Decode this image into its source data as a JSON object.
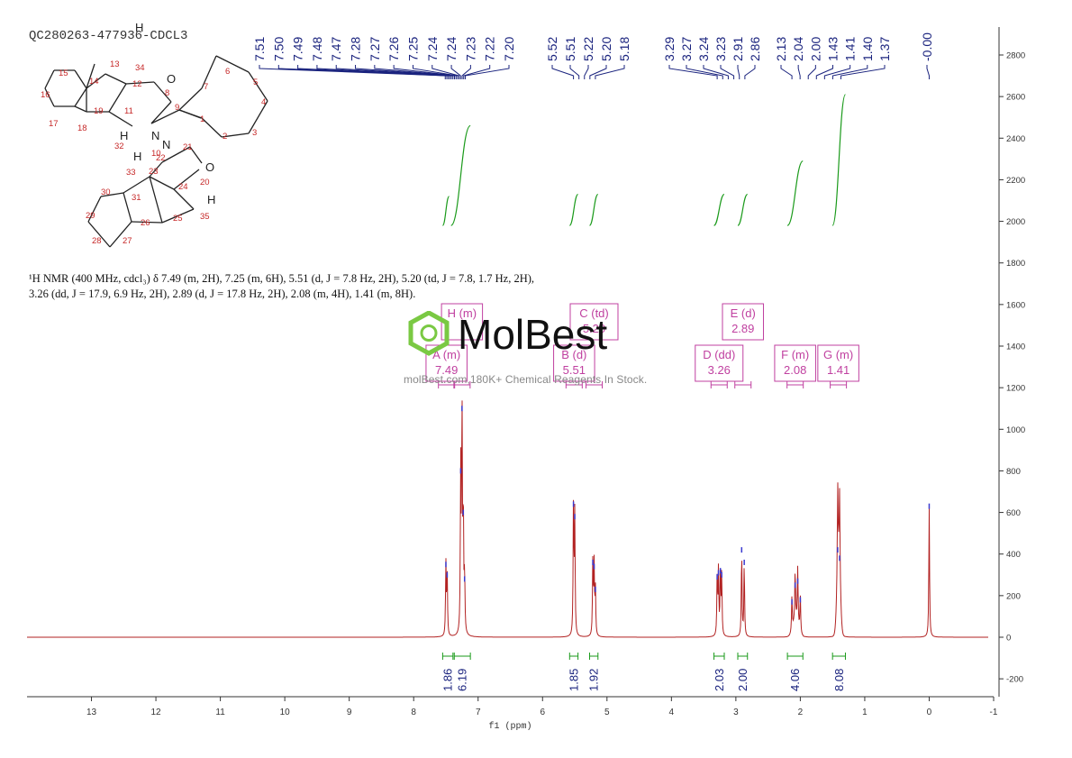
{
  "sample_id": "QC280263-477936-CDCL3",
  "nmr_summary": "¹H NMR (400 MHz, cdcl₃) δ 7.49 (m, 2H), 7.25 (m, 6H), 5.51 (d, J = 7.8 Hz, 2H), 5.20 (td, J = 7.8, 1.7 Hz, 2H), 3.26 (dd, J = 17.9, 6.9 Hz, 2H), 2.89 (d, J = 17.8 Hz, 2H), 2.08 (m, 4H), 1.41 (m, 8H).",
  "watermark": {
    "brand": "MolBest",
    "tagline": "molBest.com,180K+ Chemical Reagents In Stock."
  },
  "molecule_atoms": {
    "numbers": [
      "1",
      "2",
      "3",
      "4",
      "5",
      "6",
      "7",
      "8",
      "9",
      "10",
      "11",
      "12",
      "13",
      "14",
      "15",
      "16",
      "17",
      "18",
      "19",
      "20",
      "21",
      "22",
      "23",
      "24",
      "25",
      "26",
      "27",
      "28",
      "29",
      "30",
      "31",
      "32",
      "33",
      "34",
      "35"
    ],
    "elements": [
      "O",
      "N",
      "N",
      "O",
      "H",
      "H",
      "H",
      "H"
    ]
  },
  "chart_data": {
    "type": "line",
    "title": "",
    "xlabel": "f1 (ppm)",
    "ylabel": "",
    "xlim": [
      14,
      -1
    ],
    "ylim": [
      -300,
      2900
    ],
    "x_ticks": [
      "13",
      "12",
      "11",
      "10",
      "9",
      "8",
      "7",
      "6",
      "5",
      "4",
      "3",
      "2",
      "1",
      "0",
      "-1"
    ],
    "y_ticks": [
      "-200",
      "0",
      "200",
      "400",
      "600",
      "800",
      "1000",
      "1200",
      "1400",
      "1600",
      "1800",
      "2000",
      "2200",
      "2400",
      "2600",
      "2800"
    ],
    "peak_labels": [
      "7.51",
      "7.50",
      "7.49",
      "7.48",
      "7.47",
      "7.28",
      "7.27",
      "7.26",
      "7.25",
      "7.24",
      "7.24",
      "7.23",
      "7.22",
      "7.20",
      "5.52",
      "5.51",
      "5.22",
      "5.20",
      "5.18",
      "3.29",
      "3.27",
      "3.24",
      "3.23",
      "2.91",
      "2.86",
      "2.13",
      "2.04",
      "2.00",
      "1.43",
      "1.41",
      "1.40",
      "1.37",
      "-0.00"
    ],
    "peaks": [
      {
        "ppm": 7.5,
        "height": 350
      },
      {
        "ppm": 7.48,
        "height": 300
      },
      {
        "ppm": 7.27,
        "height": 800
      },
      {
        "ppm": 7.25,
        "height": 1100
      },
      {
        "ppm": 7.23,
        "height": 600
      },
      {
        "ppm": 7.21,
        "height": 280
      },
      {
        "ppm": 5.52,
        "height": 640
      },
      {
        "ppm": 5.5,
        "height": 580
      },
      {
        "ppm": 5.22,
        "height": 360
      },
      {
        "ppm": 5.2,
        "height": 340
      },
      {
        "ppm": 5.18,
        "height": 230
      },
      {
        "ppm": 3.29,
        "height": 290
      },
      {
        "ppm": 3.27,
        "height": 310
      },
      {
        "ppm": 3.24,
        "height": 320
      },
      {
        "ppm": 3.22,
        "height": 300
      },
      {
        "ppm": 2.91,
        "height": 420
      },
      {
        "ppm": 2.87,
        "height": 360
      },
      {
        "ppm": 2.13,
        "height": 170
      },
      {
        "ppm": 2.08,
        "height": 250
      },
      {
        "ppm": 2.04,
        "height": 270
      },
      {
        "ppm": 2.0,
        "height": 180
      },
      {
        "ppm": 1.42,
        "height": 420
      },
      {
        "ppm": 1.39,
        "height": 380
      },
      {
        "ppm": 0.0,
        "height": 630
      }
    ],
    "integrals": [
      {
        "from": 7.55,
        "to": 7.39,
        "value": "1.86"
      },
      {
        "from": 7.37,
        "to": 7.12,
        "value": "6.19"
      },
      {
        "from": 5.58,
        "to": 5.45,
        "value": "1.85"
      },
      {
        "from": 5.27,
        "to": 5.14,
        "value": "1.92"
      },
      {
        "from": 3.34,
        "to": 3.18,
        "value": "2.03"
      },
      {
        "from": 2.97,
        "to": 2.82,
        "value": "2.00"
      },
      {
        "from": 2.2,
        "to": 1.96,
        "value": "4.06"
      },
      {
        "from": 1.5,
        "to": 1.3,
        "value": "8.08"
      }
    ],
    "integral_curves": [
      {
        "from": 7.55,
        "to": 7.45,
        "base": 1980,
        "top": 2120
      },
      {
        "from": 7.42,
        "to": 7.12,
        "base": 1980,
        "top": 2460
      },
      {
        "from": 5.58,
        "to": 5.45,
        "base": 1980,
        "top": 2130
      },
      {
        "from": 5.27,
        "to": 5.14,
        "base": 1980,
        "top": 2130
      },
      {
        "from": 3.34,
        "to": 3.18,
        "base": 1980,
        "top": 2130
      },
      {
        "from": 2.97,
        "to": 2.82,
        "base": 1980,
        "top": 2130
      },
      {
        "from": 2.2,
        "to": 1.96,
        "base": 1980,
        "top": 2290
      },
      {
        "from": 1.5,
        "to": 1.3,
        "base": 1980,
        "top": 2610
      }
    ],
    "multiplets": [
      {
        "id": "H",
        "type": "H (m)",
        "value": "",
        "ppm": 7.25,
        "row": 0
      },
      {
        "id": "A",
        "type": "A (m)",
        "value": "7.49",
        "ppm": 7.49,
        "row": 1
      },
      {
        "id": "C",
        "type": "C (td)",
        "value": "5.20",
        "ppm": 5.2,
        "row": 0
      },
      {
        "id": "B",
        "type": "B (d)",
        "value": "5.51",
        "ppm": 5.51,
        "row": 1
      },
      {
        "id": "E",
        "type": "E (d)",
        "value": "2.89",
        "ppm": 2.89,
        "row": 0
      },
      {
        "id": "D",
        "type": "D (dd)",
        "value": "3.26",
        "ppm": 3.26,
        "row": 1
      },
      {
        "id": "F",
        "type": "F (m)",
        "value": "2.08",
        "ppm": 2.08,
        "row": 1
      },
      {
        "id": "G",
        "type": "G (m)",
        "value": "1.41",
        "ppm": 1.41,
        "row": 1
      }
    ],
    "colors": {
      "spectrum": "#b22222",
      "integral": "#1a9a1a",
      "peak_label": "#1a237e",
      "multiplet": "#c040a0",
      "axis": "#333333"
    }
  }
}
